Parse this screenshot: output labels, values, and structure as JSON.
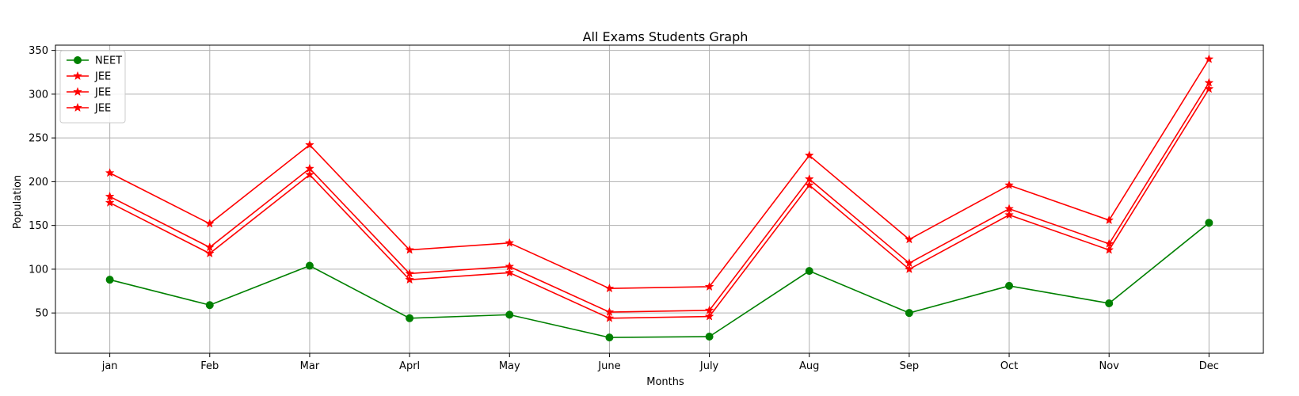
{
  "chart_data": {
    "type": "line",
    "title": "All Exams Students Graph",
    "xlabel": "Months",
    "ylabel": "Population",
    "categories": [
      "jan",
      "Feb",
      "Mar",
      "Aprl",
      "May",
      "June",
      "July",
      "Aug",
      "Sep",
      "Oct",
      "Nov",
      "Dec"
    ],
    "ylim": [
      4,
      356
    ],
    "yticks": [
      50,
      100,
      150,
      200,
      250,
      300,
      350
    ],
    "grid": true,
    "legend_position": "top-left",
    "series": [
      {
        "name": "NEET",
        "color": "#008000",
        "marker": "circle",
        "values": [
          88,
          59,
          104,
          44,
          48,
          22,
          23,
          98,
          50,
          81,
          61,
          153
        ]
      },
      {
        "name": "JEE",
        "color": "#ff0000",
        "marker": "star",
        "values": [
          176,
          118,
          208,
          88,
          96,
          44,
          46,
          196,
          100,
          162,
          122,
          306
        ]
      },
      {
        "name": "JEE",
        "color": "#ff0000",
        "marker": "star",
        "values": [
          183,
          125,
          215,
          95,
          103,
          51,
          53,
          203,
          107,
          169,
          129,
          313
        ]
      },
      {
        "name": "JEE",
        "color": "#ff0000",
        "marker": "star",
        "values": [
          210,
          152,
          242,
          122,
          130,
          78,
          80,
          230,
          134,
          196,
          156,
          340
        ]
      }
    ]
  }
}
